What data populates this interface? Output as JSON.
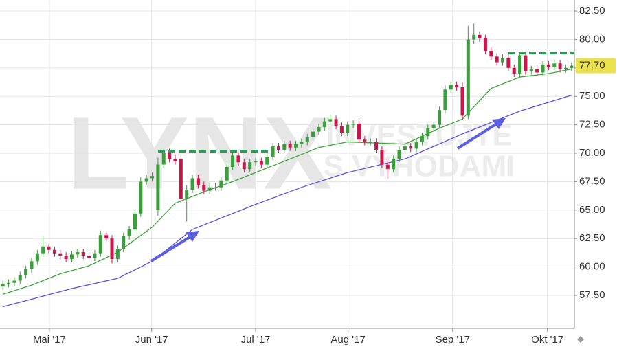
{
  "chart_data": {
    "type": "candlestick",
    "xlim": [
      -0.5,
      99.5
    ],
    "ylim": [
      54.6,
      83.47
    ],
    "xticks": [
      {
        "value": 8.1,
        "label": "Mai '17"
      },
      {
        "value": 25.9,
        "label": "Jun '17"
      },
      {
        "value": 44.0,
        "label": "Jul '17"
      },
      {
        "value": 60.1,
        "label": "Aug '17"
      },
      {
        "value": 78.3,
        "label": "Sep '17"
      },
      {
        "value": 94.8,
        "label": "Okt '17"
      }
    ],
    "yticks": [
      {
        "value": 57.5,
        "label": "57.50"
      },
      {
        "value": 60,
        "label": "60.00"
      },
      {
        "value": 62.5,
        "label": "62.50"
      },
      {
        "value": 65,
        "label": "65.00"
      },
      {
        "value": 67.5,
        "label": "67.50"
      },
      {
        "value": 70,
        "label": "70.00"
      },
      {
        "value": 72.5,
        "label": "72.50"
      },
      {
        "value": 75,
        "label": "75.00"
      },
      {
        "value": 77.5,
        "label": "77.50"
      },
      {
        "value": 80,
        "label": "80.00"
      },
      {
        "value": 82.5,
        "label": "82.50"
      }
    ],
    "grid": true,
    "up_color": "#3a9f3a",
    "down_color": "#c8184a",
    "open": [
      58.3,
      58.5,
      58.6,
      58.8,
      59.3,
      59.8,
      60.5,
      61.2,
      61.8,
      61.5,
      61.2,
      61.0,
      60.7,
      61.1,
      61.3,
      61.0,
      60.8,
      61.2,
      62.8,
      62.5,
      60.7,
      61.6,
      62.7,
      63.3,
      64.7,
      67.5,
      67.8,
      65.0,
      69.0,
      70.0,
      69.5,
      69.5,
      66.0,
      66.8,
      67.8,
      67.2,
      66.7,
      67.0,
      67.0,
      67.6,
      68.8,
      69.8,
      69.2,
      68.6,
      69.2,
      69.3,
      69.0,
      69.7,
      70.6,
      70.3,
      70.8,
      70.5,
      70.8,
      71.0,
      71.4,
      71.9,
      72.3,
      72.8,
      73.0,
      72.4,
      71.8,
      72.5,
      72.6,
      71.2,
      71.0,
      71.0,
      70.3,
      69.0,
      68.6,
      69.5,
      70.3,
      70.6,
      70.4,
      71.0,
      71.5,
      72.2,
      72.5,
      73.8,
      75.6,
      76.0,
      75.8,
      73.3,
      80.0,
      80.4,
      80.1,
      79.0,
      78.5,
      78.0,
      78.4,
      77.5,
      77.0,
      78.6,
      77.2,
      77.4,
      77.1,
      77.8,
      77.6,
      77.9,
      77.4,
      77.5
    ],
    "high": [
      58.8,
      58.9,
      59.1,
      59.6,
      60.1,
      60.8,
      61.5,
      62.7,
      62.0,
      61.8,
      61.5,
      61.3,
      61.4,
      61.6,
      61.6,
      61.3,
      61.5,
      63.2,
      63.1,
      62.8,
      61.9,
      63.0,
      63.6,
      65.0,
      67.9,
      68.1,
      68.3,
      69.6,
      70.3,
      70.4,
      69.9,
      69.8,
      67.2,
      68.1,
      68.1,
      67.5,
      67.4,
      67.4,
      67.9,
      69.1,
      70.1,
      70.1,
      69.5,
      69.5,
      69.6,
      69.6,
      70.0,
      70.9,
      70.9,
      71.1,
      71.1,
      71.1,
      71.3,
      71.7,
      72.2,
      72.6,
      73.1,
      73.4,
      73.3,
      72.7,
      72.8,
      72.9,
      72.9,
      71.5,
      71.3,
      71.3,
      70.6,
      69.3,
      69.8,
      70.6,
      70.9,
      70.9,
      71.3,
      71.8,
      72.5,
      72.8,
      74.1,
      76.0,
      76.3,
      76.3,
      76.2,
      81.2,
      81.4,
      80.7,
      80.4,
      79.3,
      78.8,
      78.7,
      78.7,
      77.8,
      78.9,
      78.9,
      77.7,
      77.7,
      78.1,
      78.1,
      78.2,
      78.2,
      77.8,
      78.0
    ],
    "low": [
      58.0,
      58.2,
      58.3,
      58.5,
      59.0,
      59.5,
      60.2,
      60.9,
      61.2,
      60.9,
      60.7,
      60.4,
      60.4,
      60.8,
      60.7,
      60.5,
      60.5,
      60.9,
      62.2,
      60.3,
      60.4,
      61.3,
      62.4,
      63.0,
      64.4,
      67.2,
      67.5,
      64.5,
      68.7,
      69.2,
      69.0,
      65.6,
      64.0,
      66.5,
      66.9,
      66.4,
      66.4,
      66.7,
      66.7,
      67.3,
      68.5,
      68.9,
      68.3,
      68.3,
      68.9,
      68.7,
      68.7,
      69.4,
      70.0,
      70.0,
      70.2,
      70.2,
      70.5,
      70.7,
      71.1,
      71.6,
      72.0,
      72.5,
      72.1,
      71.5,
      71.5,
      72.2,
      70.9,
      70.7,
      70.7,
      70.0,
      68.7,
      67.8,
      68.3,
      69.2,
      70.0,
      70.1,
      70.1,
      70.7,
      71.2,
      71.9,
      72.2,
      73.5,
      75.3,
      75.5,
      72.9,
      73.0,
      79.6,
      79.8,
      78.7,
      78.2,
      77.7,
      77.7,
      77.2,
      76.7,
      76.7,
      76.9,
      76.9,
      76.8,
      76.8,
      77.3,
      77.3,
      77.1,
      77.1,
      77.2
    ],
    "close": [
      58.5,
      58.6,
      58.8,
      59.3,
      59.8,
      60.5,
      61.2,
      61.8,
      61.5,
      61.2,
      61.0,
      60.7,
      61.1,
      61.3,
      61.0,
      60.8,
      61.2,
      62.8,
      62.5,
      60.7,
      61.6,
      62.7,
      63.3,
      64.7,
      67.5,
      67.8,
      68.0,
      69.0,
      70.0,
      69.5,
      69.3,
      66.0,
      66.8,
      67.8,
      67.2,
      66.7,
      67.0,
      67.0,
      67.6,
      68.8,
      69.8,
      69.2,
      68.6,
      69.2,
      69.3,
      69.0,
      69.7,
      70.6,
      70.3,
      70.8,
      70.5,
      70.8,
      71.0,
      71.4,
      71.9,
      72.3,
      72.8,
      73.0,
      72.4,
      71.8,
      72.5,
      72.6,
      71.2,
      71.0,
      71.0,
      70.3,
      69.0,
      68.6,
      69.5,
      70.3,
      70.6,
      70.4,
      71.0,
      71.5,
      72.2,
      72.5,
      73.8,
      75.6,
      76.0,
      75.8,
      73.3,
      80.0,
      80.4,
      80.1,
      79.0,
      78.5,
      78.0,
      78.4,
      77.5,
      77.0,
      78.6,
      77.2,
      77.4,
      77.1,
      77.8,
      77.6,
      77.9,
      77.4,
      77.5,
      77.7
    ],
    "lines": [
      {
        "color": "#3aa53a",
        "x": [
          0,
          5,
          10,
          15,
          20,
          26,
          30,
          35,
          40,
          45,
          50,
          55,
          60,
          65,
          70,
          76,
          80,
          85,
          90,
          95,
          99
        ],
        "values": [
          57.6,
          58.4,
          59.4,
          60.1,
          61.3,
          63.5,
          65.6,
          66.6,
          67.5,
          68.5,
          69.5,
          70.5,
          71.0,
          70.9,
          70.8,
          72.2,
          73.0,
          75.7,
          76.7,
          77.0,
          77.4
        ]
      },
      {
        "color": "#5a50e0",
        "x": [
          0,
          6,
          12,
          20,
          26,
          33,
          44,
          52,
          60,
          70,
          80,
          90,
          99
        ],
        "values": [
          56.5,
          57.3,
          58.1,
          59.0,
          60.5,
          63.3,
          65.5,
          67.0,
          68.3,
          69.5,
          71.7,
          73.7,
          75.1
        ]
      }
    ],
    "last_price": {
      "value": 77.7,
      "label": "77.70"
    },
    "watermark": {
      "logo": "LYNX",
      "tagline_1": "INVESTUJTE",
      "tagline_2": "S VÝHODAMI"
    }
  }
}
